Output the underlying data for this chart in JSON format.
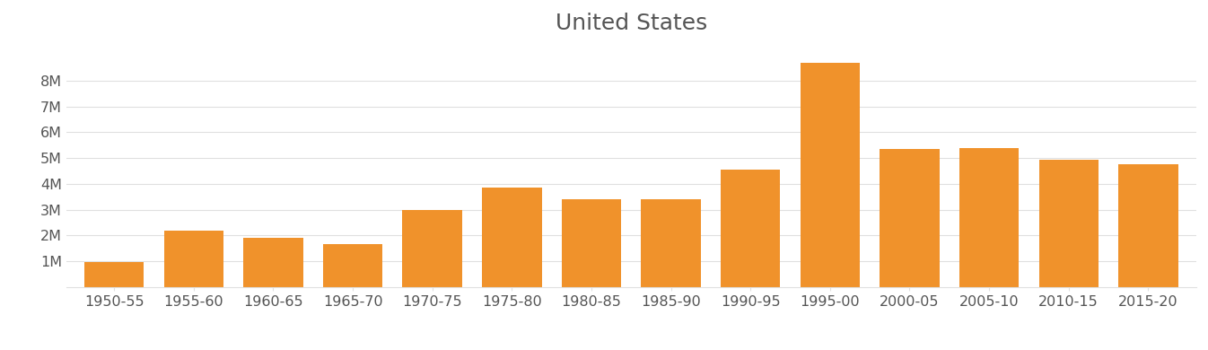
{
  "title": "United States",
  "categories": [
    "1950-55",
    "1955-60",
    "1960-65",
    "1965-70",
    "1970-75",
    "1975-80",
    "1980-85",
    "1985-90",
    "1990-95",
    "1995-00",
    "2000-05",
    "2005-10",
    "2010-15",
    "2015-20"
  ],
  "values": [
    950000,
    2200000,
    1900000,
    1650000,
    3000000,
    3850000,
    3400000,
    3400000,
    4550000,
    8700000,
    5350000,
    5400000,
    4950000,
    4750000
  ],
  "bar_color": "#F0922B",
  "background_color": "#ffffff",
  "plot_bg_color": "#ffffff",
  "title_fontsize": 18,
  "tick_label_fontsize": 11.5,
  "tick_color": "#555555",
  "grid_color": "#e0e0e0",
  "ylim": [
    0,
    9500000
  ],
  "yticks": [
    1000000,
    2000000,
    3000000,
    4000000,
    5000000,
    6000000,
    7000000,
    8000000
  ]
}
